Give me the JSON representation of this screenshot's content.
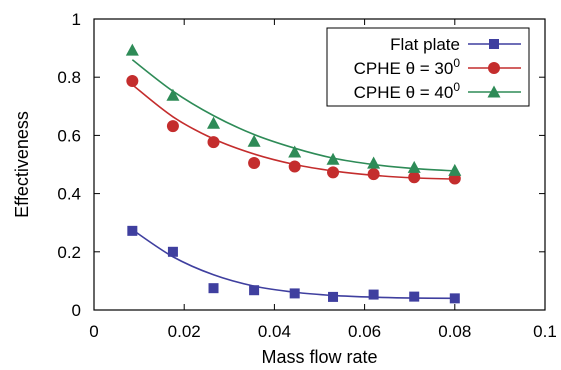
{
  "chart_data": {
    "type": "scatter",
    "title": "",
    "xlabel": "Mass flow rate",
    "ylabel": "Effectiveness",
    "xlim": [
      0,
      0.1
    ],
    "ylim": [
      0,
      1
    ],
    "xticks": [
      0,
      0.02,
      0.04,
      0.06,
      0.08,
      0.1
    ],
    "xtick_labels": [
      "0",
      "0.02",
      "0.04",
      "0.06",
      "0.08",
      "0.1"
    ],
    "yticks": [
      0,
      0.2,
      0.4,
      0.6,
      0.8,
      1
    ],
    "ytick_labels": [
      "0",
      "0.2",
      "0.4",
      "0.6",
      "0.8",
      "1"
    ],
    "grid": false,
    "legend_position": "top-right",
    "x": [
      0.0085,
      0.0175,
      0.0265,
      0.0355,
      0.0445,
      0.053,
      0.062,
      0.071,
      0.08
    ],
    "series": [
      {
        "name": "Flat plate",
        "legend_base": "Flat plate",
        "legend_sup": "",
        "marker": "square",
        "color": "#3f3f9f",
        "values": [
          0.272,
          0.2,
          0.075,
          0.068,
          0.057,
          0.045,
          0.053,
          0.046,
          0.04
        ],
        "fit": [
          0.276,
          0.183,
          0.121,
          0.082,
          0.061,
          0.05,
          0.044,
          0.041,
          0.04
        ]
      },
      {
        "name": "CPHE θ = 30⁰",
        "legend_base": "CPHE θ = 30",
        "legend_sup": "0",
        "marker": "circle",
        "color": "#c42d2d",
        "values": [
          0.787,
          0.632,
          0.577,
          0.505,
          0.493,
          0.473,
          0.467,
          0.456,
          0.452
        ],
        "fit": [
          0.774,
          0.664,
          0.588,
          0.536,
          0.5,
          0.478,
          0.463,
          0.454,
          0.45
        ]
      },
      {
        "name": "CPHE θ = 40⁰",
        "legend_base": "CPHE θ = 40",
        "legend_sup": "0",
        "marker": "triangle",
        "color": "#2e8b57",
        "values": [
          0.893,
          0.738,
          0.642,
          0.58,
          0.543,
          0.518,
          0.505,
          0.49,
          0.48
        ],
        "fit": [
          0.86,
          0.752,
          0.668,
          0.603,
          0.556,
          0.522,
          0.5,
          0.486,
          0.478
        ]
      }
    ]
  }
}
